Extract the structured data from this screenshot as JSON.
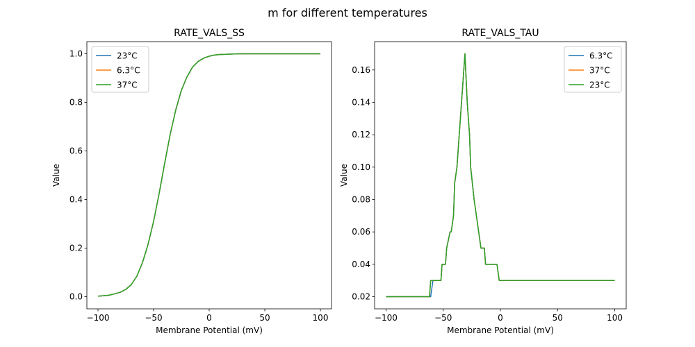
{
  "figure": {
    "suptitle": "m for different temperatures"
  },
  "chart_data": [
    {
      "type": "line",
      "title": "RATE_VALS_SS",
      "xlabel": "Membrane Potential (mV)",
      "ylabel": "Value",
      "xlim": [
        -110,
        110
      ],
      "ylim": [
        -0.05,
        1.05
      ],
      "xticks": [
        -100,
        -50,
        0,
        50,
        100
      ],
      "yticks": [
        0.0,
        0.2,
        0.4,
        0.6,
        0.8,
        1.0
      ],
      "xtick_labels": [
        "−100",
        "−50",
        "0",
        "50",
        "100"
      ],
      "ytick_labels": [
        "0.0",
        "0.2",
        "0.4",
        "0.6",
        "0.8",
        "1.0"
      ],
      "legend_position": "upper left",
      "x": [
        -100,
        -95,
        -90,
        -85,
        -80,
        -75,
        -70,
        -65,
        -60,
        -55,
        -50,
        -45,
        -40,
        -35,
        -30,
        -25,
        -20,
        -15,
        -10,
        -5,
        0,
        5,
        10,
        15,
        20,
        25,
        30,
        40,
        50,
        60,
        70,
        80,
        90,
        100
      ],
      "series": [
        {
          "name": "23°C",
          "color": "#1f77b4",
          "values": [
            0.002,
            0.004,
            0.006,
            0.012,
            0.018,
            0.03,
            0.05,
            0.085,
            0.14,
            0.215,
            0.31,
            0.425,
            0.55,
            0.67,
            0.77,
            0.85,
            0.905,
            0.945,
            0.968,
            0.982,
            0.99,
            0.995,
            0.997,
            0.998,
            0.999,
            0.9995,
            1.0,
            1.0,
            1.0,
            1.0,
            1.0,
            1.0,
            1.0,
            1.0
          ]
        },
        {
          "name": "6.3°C",
          "color": "#ff7f0e",
          "values": [
            0.002,
            0.004,
            0.006,
            0.012,
            0.018,
            0.03,
            0.05,
            0.085,
            0.14,
            0.215,
            0.31,
            0.425,
            0.55,
            0.67,
            0.77,
            0.85,
            0.905,
            0.945,
            0.968,
            0.982,
            0.99,
            0.995,
            0.997,
            0.998,
            0.999,
            0.9995,
            1.0,
            1.0,
            1.0,
            1.0,
            1.0,
            1.0,
            1.0,
            1.0
          ]
        },
        {
          "name": "37°C",
          "color": "#2ca02c",
          "values": [
            0.002,
            0.004,
            0.006,
            0.012,
            0.018,
            0.03,
            0.05,
            0.085,
            0.14,
            0.215,
            0.31,
            0.425,
            0.55,
            0.67,
            0.77,
            0.85,
            0.905,
            0.945,
            0.968,
            0.982,
            0.99,
            0.995,
            0.997,
            0.998,
            0.999,
            0.9995,
            1.0,
            1.0,
            1.0,
            1.0,
            1.0,
            1.0,
            1.0,
            1.0
          ]
        }
      ]
    },
    {
      "type": "line",
      "title": "RATE_VALS_TAU",
      "xlabel": "Membrane Potential (mV)",
      "ylabel": "Value",
      "xlim": [
        -110,
        110
      ],
      "ylim": [
        0.0125,
        0.1775
      ],
      "xticks": [
        -100,
        -50,
        0,
        50,
        100
      ],
      "yticks": [
        0.02,
        0.04,
        0.06,
        0.08,
        0.1,
        0.12,
        0.14,
        0.16
      ],
      "xtick_labels": [
        "−100",
        "−50",
        "0",
        "50",
        "100"
      ],
      "ytick_labels": [
        "0.02",
        "0.04",
        "0.06",
        "0.08",
        "0.10",
        "0.12",
        "0.14",
        "0.16"
      ],
      "legend_position": "upper right",
      "series": [
        {
          "name": "6.3°C",
          "color": "#1f77b4",
          "x": [
            -100,
            -61,
            -59,
            -52,
            -51,
            -48,
            -47,
            -44,
            -43,
            -41,
            -40,
            -38,
            -37,
            -35,
            -33,
            -31,
            -29,
            -27,
            -26,
            -23,
            -21,
            -19,
            -17,
            -14,
            -13,
            -11,
            -10,
            -3,
            -1,
            100
          ],
          "values": [
            0.02,
            0.02,
            0.03,
            0.03,
            0.04,
            0.04,
            0.05,
            0.06,
            0.06,
            0.07,
            0.09,
            0.1,
            0.11,
            0.13,
            0.15,
            0.17,
            0.14,
            0.12,
            0.1,
            0.08,
            0.07,
            0.06,
            0.05,
            0.05,
            0.04,
            0.04,
            0.04,
            0.04,
            0.03,
            0.03
          ]
        },
        {
          "name": "37°C",
          "color": "#ff7f0e",
          "x": [
            -100,
            -62,
            -61,
            -52,
            -51,
            -48,
            -47,
            -44,
            -43,
            -41,
            -40,
            -38,
            -37,
            -35,
            -33,
            -31,
            -29,
            -27,
            -26,
            -23,
            -21,
            -19,
            -17,
            -14,
            -13,
            -11,
            -10,
            -3,
            -1,
            100
          ],
          "values": [
            0.02,
            0.02,
            0.03,
            0.03,
            0.04,
            0.04,
            0.05,
            0.06,
            0.06,
            0.07,
            0.09,
            0.1,
            0.11,
            0.13,
            0.15,
            0.17,
            0.14,
            0.12,
            0.1,
            0.08,
            0.07,
            0.06,
            0.05,
            0.05,
            0.04,
            0.04,
            0.04,
            0.04,
            0.03,
            0.03
          ]
        },
        {
          "name": "23°C",
          "color": "#2ca02c",
          "x": [
            -100,
            -62,
            -61,
            -52,
            -51,
            -48,
            -47,
            -44,
            -43,
            -41,
            -40,
            -38,
            -37,
            -35,
            -33,
            -31,
            -29,
            -27,
            -26,
            -23,
            -21,
            -19,
            -17,
            -14,
            -13,
            -11,
            -10,
            -3,
            -1,
            100
          ],
          "values": [
            0.02,
            0.02,
            0.03,
            0.03,
            0.04,
            0.04,
            0.05,
            0.06,
            0.06,
            0.07,
            0.09,
            0.1,
            0.11,
            0.13,
            0.15,
            0.17,
            0.14,
            0.12,
            0.1,
            0.08,
            0.07,
            0.06,
            0.05,
            0.05,
            0.04,
            0.04,
            0.04,
            0.04,
            0.03,
            0.03
          ]
        }
      ]
    }
  ]
}
